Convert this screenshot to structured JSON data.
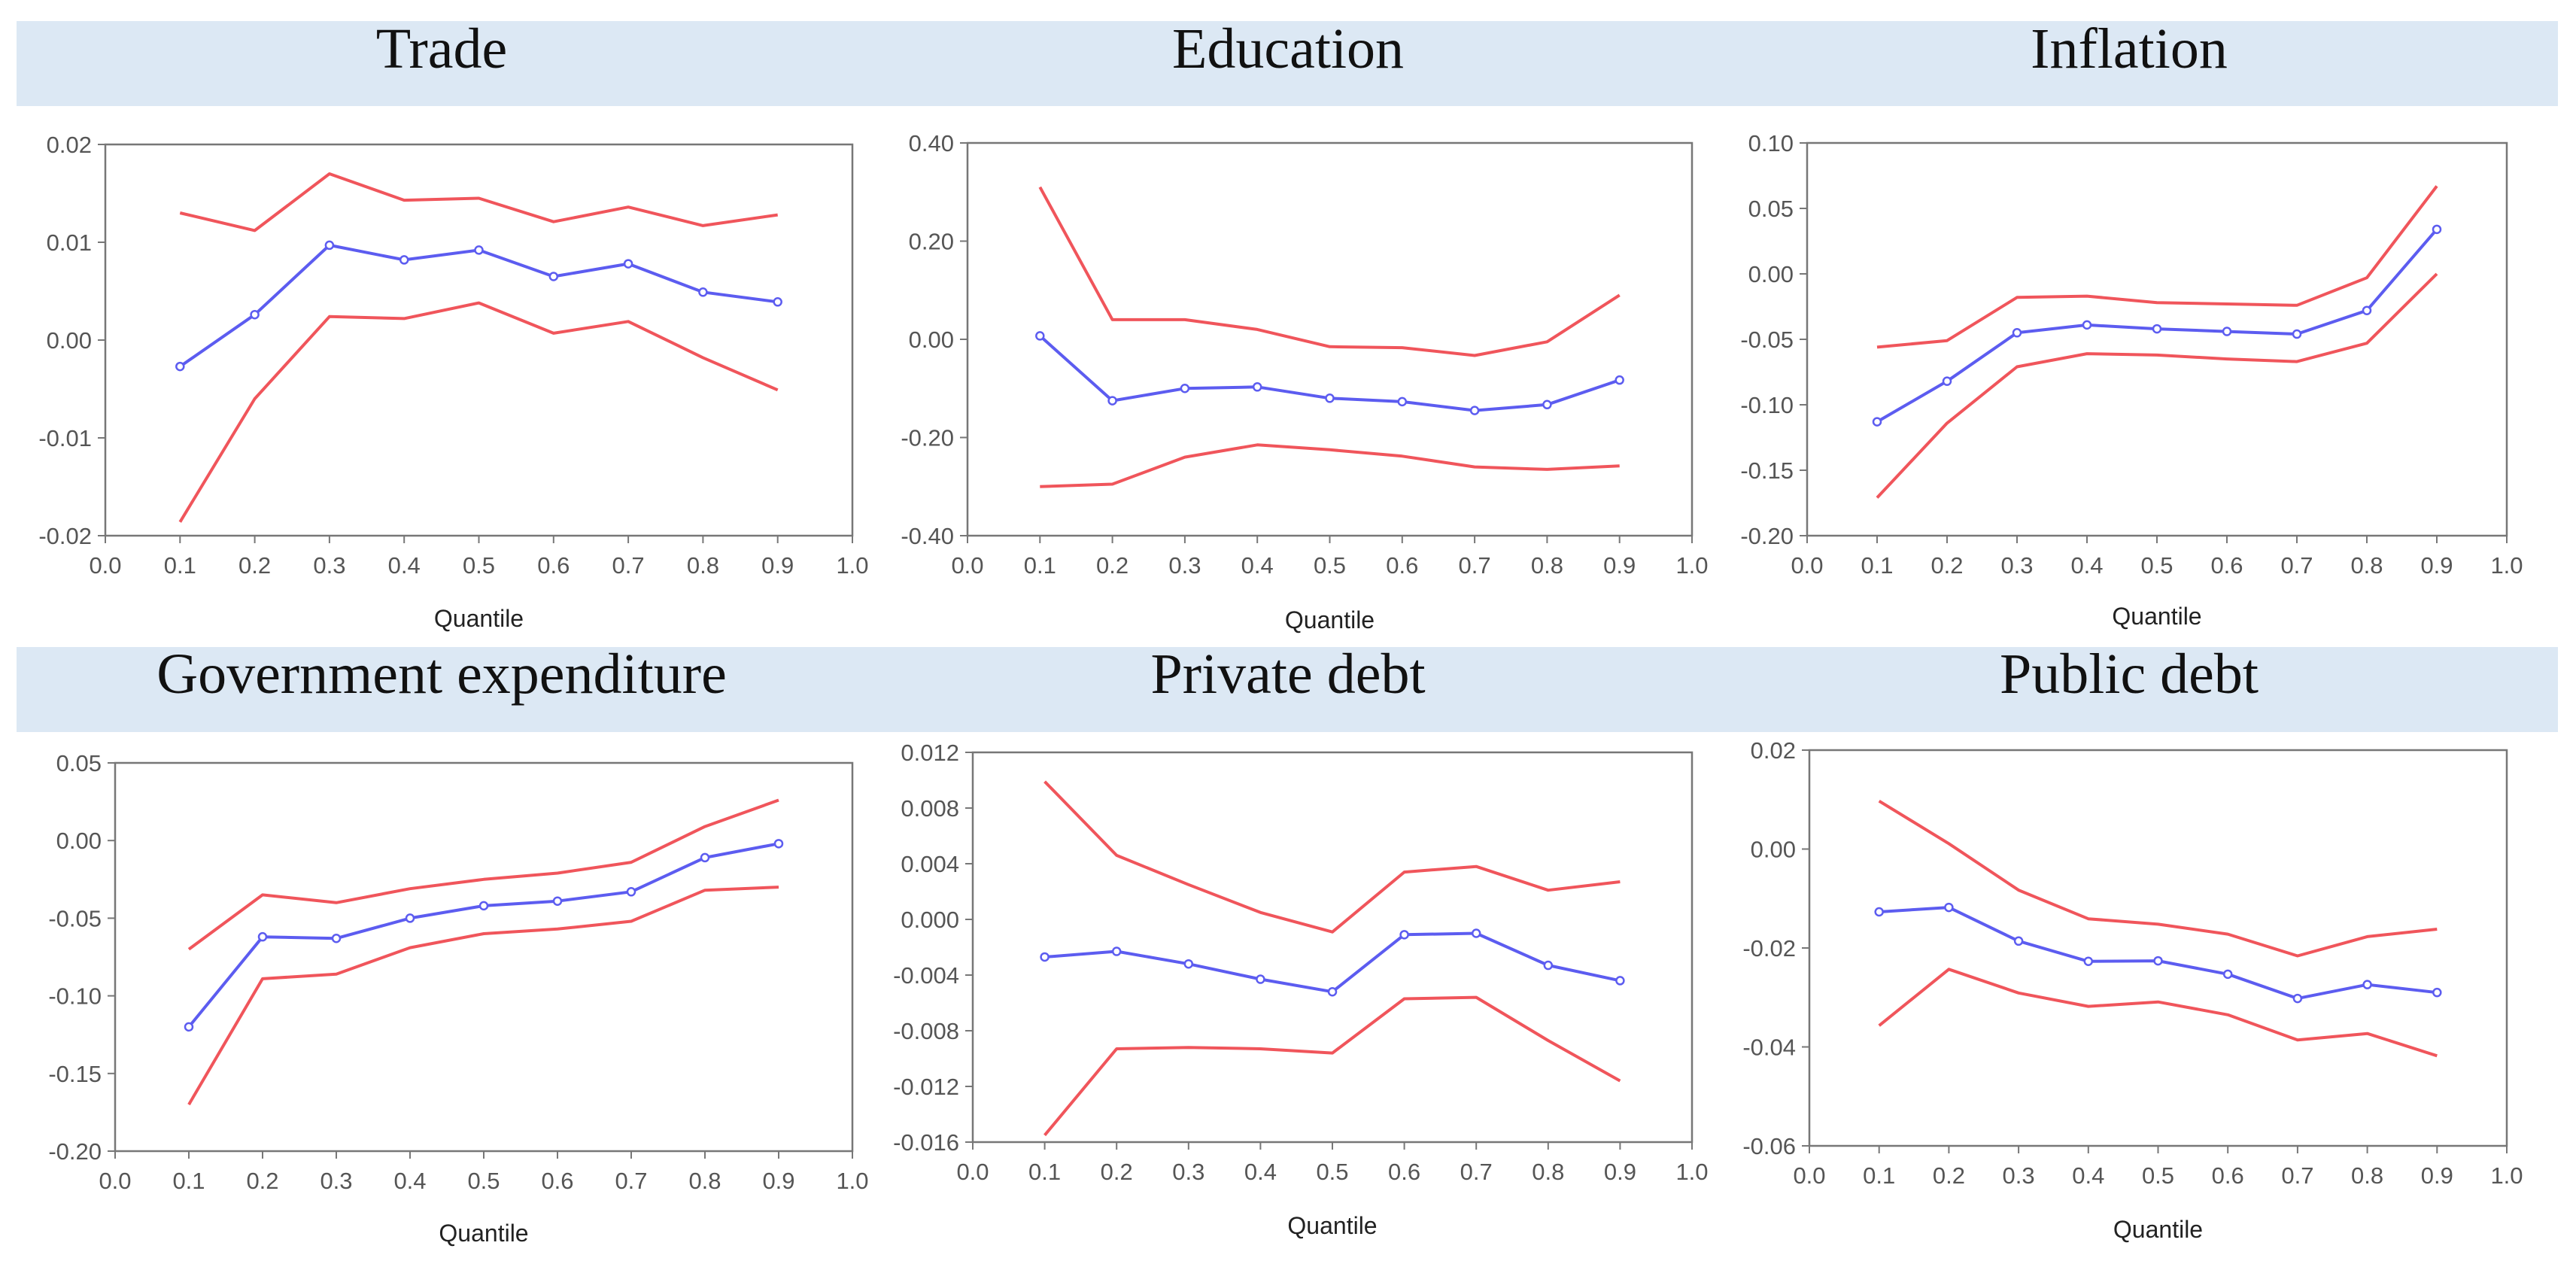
{
  "colors": {
    "band": "#dce8f4",
    "bounds": "#f0555b",
    "estimate": "#5c5cf0",
    "axis": "#777777",
    "tick_text": "#555555"
  },
  "chart_data": [
    {
      "type": "line",
      "title": "Trade",
      "xlabel": "Quantile",
      "ylabel": "",
      "xlim": [
        0.0,
        1.0
      ],
      "ylim": [
        -0.02,
        0.02
      ],
      "xticks": [
        "0.0",
        "0.1",
        "0.2",
        "0.3",
        "0.4",
        "0.5",
        "0.6",
        "0.7",
        "0.8",
        "0.9",
        "1.0"
      ],
      "yticks": [
        "0.02",
        "0.01",
        "0.00",
        "-0.01",
        "-0.02"
      ],
      "x": [
        0.1,
        0.2,
        0.3,
        0.4,
        0.5,
        0.6,
        0.7,
        0.8,
        0.9
      ],
      "series": [
        {
          "name": "upper",
          "role": "bound",
          "values": [
            0.013,
            0.0112,
            0.017,
            0.0143,
            0.0145,
            0.0121,
            0.0136,
            0.0117,
            0.0128
          ]
        },
        {
          "name": "estimate",
          "role": "estimate",
          "values": [
            -0.0027,
            0.0026,
            0.0097,
            0.0082,
            0.0092,
            0.0065,
            0.0078,
            0.0049,
            0.0039
          ]
        },
        {
          "name": "lower",
          "role": "bound",
          "values": [
            -0.0186,
            -0.006,
            0.0024,
            0.0022,
            0.0038,
            0.0007,
            0.0019,
            -0.0018,
            -0.0051
          ]
        }
      ]
    },
    {
      "type": "line",
      "title": "Education",
      "xlabel": "Quantile",
      "ylabel": "",
      "xlim": [
        0.0,
        1.0
      ],
      "ylim": [
        -0.4,
        0.4
      ],
      "xticks": [
        "0.0",
        "0.1",
        "0.2",
        "0.3",
        "0.4",
        "0.5",
        "0.6",
        "0.7",
        "0.8",
        "0.9",
        "1.0"
      ],
      "yticks": [
        "0.40",
        "0.20",
        "0.00",
        "-0.20",
        "-0.40"
      ],
      "x": [
        0.1,
        0.2,
        0.3,
        0.4,
        0.5,
        0.6,
        0.7,
        0.8,
        0.9
      ],
      "series": [
        {
          "name": "upper",
          "role": "bound",
          "values": [
            0.31,
            0.04,
            0.04,
            0.02,
            -0.015,
            -0.017,
            -0.033,
            -0.005,
            0.09
          ]
        },
        {
          "name": "estimate",
          "role": "estimate",
          "values": [
            0.007,
            -0.125,
            -0.1,
            -0.097,
            -0.12,
            -0.127,
            -0.145,
            -0.133,
            -0.083
          ]
        },
        {
          "name": "lower",
          "role": "bound",
          "values": [
            -0.3,
            -0.295,
            -0.24,
            -0.215,
            -0.225,
            -0.238,
            -0.26,
            -0.265,
            -0.258
          ]
        }
      ]
    },
    {
      "type": "line",
      "title": "Inflation",
      "xlabel": "Quantile",
      "ylabel": "",
      "xlim": [
        0.0,
        1.0
      ],
      "ylim": [
        -0.2,
        0.1
      ],
      "xticks": [
        "0.0",
        "0.1",
        "0.2",
        "0.3",
        "0.4",
        "0.5",
        "0.6",
        "0.7",
        "0.8",
        "0.9",
        "1.0"
      ],
      "yticks": [
        "0.10",
        "0.05",
        "0.00",
        "-0.05",
        "-0.10",
        "-0.15",
        "-0.20"
      ],
      "x": [
        0.1,
        0.2,
        0.3,
        0.4,
        0.5,
        0.6,
        0.7,
        0.8,
        0.9
      ],
      "series": [
        {
          "name": "upper",
          "role": "bound",
          "values": [
            -0.056,
            -0.051,
            -0.018,
            -0.017,
            -0.022,
            -0.023,
            -0.024,
            -0.003,
            0.067
          ]
        },
        {
          "name": "estimate",
          "role": "estimate",
          "values": [
            -0.113,
            -0.082,
            -0.045,
            -0.039,
            -0.042,
            -0.044,
            -0.046,
            -0.028,
            0.034
          ]
        },
        {
          "name": "lower",
          "role": "bound",
          "values": [
            -0.171,
            -0.114,
            -0.071,
            -0.061,
            -0.062,
            -0.065,
            -0.067,
            -0.053,
            0.0
          ]
        }
      ]
    },
    {
      "type": "line",
      "title": "Government expenditure",
      "xlabel": "Quantile",
      "ylabel": "",
      "xlim": [
        0.0,
        1.0
      ],
      "ylim": [
        -0.2,
        0.05
      ],
      "xticks": [
        "0.0",
        "0.1",
        "0.2",
        "0.3",
        "0.4",
        "0.5",
        "0.6",
        "0.7",
        "0.8",
        "0.9",
        "1.0"
      ],
      "yticks": [
        "0.05",
        "0.00",
        "-0.05",
        "-0.10",
        "-0.15",
        "-0.20"
      ],
      "x": [
        0.1,
        0.2,
        0.3,
        0.4,
        0.5,
        0.6,
        0.7,
        0.8,
        0.9
      ],
      "series": [
        {
          "name": "upper",
          "role": "bound",
          "values": [
            -0.07,
            -0.035,
            -0.04,
            -0.031,
            -0.025,
            -0.021,
            -0.014,
            0.009,
            0.026
          ]
        },
        {
          "name": "estimate",
          "role": "estimate",
          "values": [
            -0.12,
            -0.062,
            -0.063,
            -0.05,
            -0.042,
            -0.039,
            -0.033,
            -0.011,
            -0.002
          ]
        },
        {
          "name": "lower",
          "role": "bound",
          "values": [
            -0.17,
            -0.089,
            -0.086,
            -0.069,
            -0.06,
            -0.057,
            -0.052,
            -0.032,
            -0.03
          ]
        }
      ]
    },
    {
      "type": "line",
      "title": "Private debt",
      "xlabel": "Quantile",
      "ylabel": "",
      "xlim": [
        0.0,
        1.0
      ],
      "ylim": [
        -0.016,
        0.012
      ],
      "xticks": [
        "0.0",
        "0.1",
        "0.2",
        "0.3",
        "0.4",
        "0.5",
        "0.6",
        "0.7",
        "0.8",
        "0.9",
        "1.0"
      ],
      "yticks": [
        "0.012",
        "0.008",
        "0.004",
        "0.000",
        "-0.004",
        "-0.008",
        "-0.012",
        "-0.016"
      ],
      "x": [
        0.1,
        0.2,
        0.3,
        0.4,
        0.5,
        0.6,
        0.7,
        0.8,
        0.9
      ],
      "series": [
        {
          "name": "upper",
          "role": "bound",
          "values": [
            0.0099,
            0.0046,
            0.0025,
            0.0005,
            -0.0009,
            0.0034,
            0.0038,
            0.0021,
            0.0027
          ]
        },
        {
          "name": "estimate",
          "role": "estimate",
          "values": [
            -0.0027,
            -0.0023,
            -0.0032,
            -0.0043,
            -0.0052,
            -0.0011,
            -0.001,
            -0.0033,
            -0.0044
          ]
        },
        {
          "name": "lower",
          "role": "bound",
          "values": [
            -0.0155,
            -0.0093,
            -0.0092,
            -0.0093,
            -0.0096,
            -0.0057,
            -0.0056,
            -0.0087,
            -0.0116
          ]
        }
      ]
    },
    {
      "type": "line",
      "title": "Public debt",
      "xlabel": "Quantile",
      "ylabel": "",
      "xlim": [
        0.0,
        1.0
      ],
      "ylim": [
        -0.06,
        0.02
      ],
      "xticks": [
        "0.0",
        "0.1",
        "0.2",
        "0.3",
        "0.4",
        "0.5",
        "0.6",
        "0.7",
        "0.8",
        "0.9",
        "1.0"
      ],
      "yticks": [
        "0.02",
        "0.00",
        "-0.02",
        "-0.04",
        "-0.06"
      ],
      "x": [
        0.1,
        0.2,
        0.3,
        0.4,
        0.5,
        0.6,
        0.7,
        0.8,
        0.9
      ],
      "series": [
        {
          "name": "upper",
          "role": "bound",
          "values": [
            0.0097,
            0.0011,
            -0.0083,
            -0.0141,
            -0.0152,
            -0.0172,
            -0.0216,
            -0.0177,
            -0.0162
          ]
        },
        {
          "name": "estimate",
          "role": "estimate",
          "values": [
            -0.0127,
            -0.0118,
            -0.0186,
            -0.0227,
            -0.0226,
            -0.0253,
            -0.0302,
            -0.0274,
            -0.029
          ]
        },
        {
          "name": "lower",
          "role": "bound",
          "values": [
            -0.0357,
            -0.0243,
            -0.0291,
            -0.0318,
            -0.0309,
            -0.0335,
            -0.0386,
            -0.0373,
            -0.0418
          ]
        }
      ]
    }
  ]
}
